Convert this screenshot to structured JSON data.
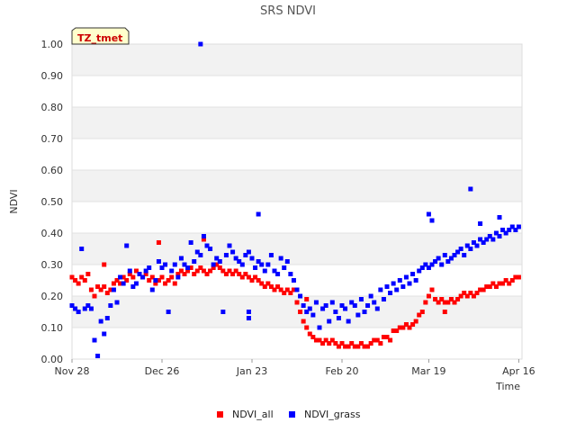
{
  "chart_data": {
    "type": "scatter",
    "title": "SRS NDVI",
    "xlabel": "Time",
    "ylabel": "NDVI",
    "site_badge": "TZ_tmet",
    "ylim": [
      0,
      1
    ],
    "yticks": [
      "0.00",
      "0.10",
      "0.20",
      "0.30",
      "0.40",
      "0.50",
      "0.60",
      "0.70",
      "0.80",
      "0.90",
      "1.00"
    ],
    "x_range_days": [
      0,
      140
    ],
    "x_ticks": [
      {
        "label": "Nov 28",
        "day": 0
      },
      {
        "label": "Dec 26",
        "day": 28
      },
      {
        "label": "Jan 23",
        "day": 56
      },
      {
        "label": "Feb 20",
        "day": 84
      },
      {
        "label": "Mar 19",
        "day": 111
      },
      {
        "label": "Apr 16",
        "day": 139
      }
    ],
    "legend": "bottom-center",
    "series": [
      {
        "name": "NDVI_all",
        "color": "#ff0000",
        "points": [
          [
            0,
            0.26
          ],
          [
            1,
            0.25
          ],
          [
            2,
            0.24
          ],
          [
            3,
            0.26
          ],
          [
            4,
            0.25
          ],
          [
            5,
            0.27
          ],
          [
            6,
            0.22
          ],
          [
            7,
            0.2
          ],
          [
            8,
            0.23
          ],
          [
            9,
            0.22
          ],
          [
            10,
            0.23
          ],
          [
            11,
            0.21
          ],
          [
            12,
            0.22
          ],
          [
            13,
            0.24
          ],
          [
            14,
            0.25
          ],
          [
            15,
            0.24
          ],
          [
            16,
            0.26
          ],
          [
            17,
            0.25
          ],
          [
            18,
            0.27
          ],
          [
            19,
            0.26
          ],
          [
            20,
            0.28
          ],
          [
            21,
            0.27
          ],
          [
            22,
            0.26
          ],
          [
            23,
            0.27
          ],
          [
            24,
            0.25
          ],
          [
            25,
            0.26
          ],
          [
            26,
            0.24
          ],
          [
            27,
            0.25
          ],
          [
            28,
            0.26
          ],
          [
            29,
            0.24
          ],
          [
            30,
            0.25
          ],
          [
            31,
            0.26
          ],
          [
            32,
            0.24
          ],
          [
            33,
            0.27
          ],
          [
            34,
            0.28
          ],
          [
            35,
            0.27
          ],
          [
            36,
            0.28
          ],
          [
            37,
            0.29
          ],
          [
            38,
            0.27
          ],
          [
            39,
            0.28
          ],
          [
            40,
            0.29
          ],
          [
            41,
            0.28
          ],
          [
            42,
            0.27
          ],
          [
            43,
            0.28
          ],
          [
            44,
            0.29
          ],
          [
            45,
            0.3
          ],
          [
            46,
            0.29
          ],
          [
            47,
            0.28
          ],
          [
            48,
            0.27
          ],
          [
            49,
            0.28
          ],
          [
            50,
            0.27
          ],
          [
            51,
            0.28
          ],
          [
            52,
            0.27
          ],
          [
            53,
            0.26
          ],
          [
            54,
            0.27
          ],
          [
            55,
            0.26
          ],
          [
            56,
            0.25
          ],
          [
            57,
            0.26
          ],
          [
            58,
            0.25
          ],
          [
            59,
            0.24
          ],
          [
            60,
            0.23
          ],
          [
            61,
            0.24
          ],
          [
            62,
            0.23
          ],
          [
            63,
            0.22
          ],
          [
            64,
            0.23
          ],
          [
            65,
            0.22
          ],
          [
            66,
            0.21
          ],
          [
            67,
            0.22
          ],
          [
            68,
            0.21
          ],
          [
            69,
            0.22
          ],
          [
            70,
            0.18
          ],
          [
            71,
            0.15
          ],
          [
            72,
            0.12
          ],
          [
            73,
            0.1
          ],
          [
            74,
            0.08
          ],
          [
            75,
            0.07
          ],
          [
            76,
            0.06
          ],
          [
            77,
            0.06
          ],
          [
            78,
            0.05
          ],
          [
            79,
            0.06
          ],
          [
            80,
            0.05
          ],
          [
            81,
            0.06
          ],
          [
            82,
            0.05
          ],
          [
            83,
            0.04
          ],
          [
            84,
            0.05
          ],
          [
            85,
            0.04
          ],
          [
            86,
            0.04
          ],
          [
            87,
            0.05
          ],
          [
            88,
            0.04
          ],
          [
            89,
            0.04
          ],
          [
            90,
            0.05
          ],
          [
            91,
            0.04
          ],
          [
            92,
            0.04
          ],
          [
            93,
            0.05
          ],
          [
            94,
            0.06
          ],
          [
            95,
            0.06
          ],
          [
            96,
            0.05
          ],
          [
            97,
            0.07
          ],
          [
            98,
            0.07
          ],
          [
            99,
            0.06
          ],
          [
            100,
            0.09
          ],
          [
            101,
            0.09
          ],
          [
            102,
            0.1
          ],
          [
            103,
            0.1
          ],
          [
            104,
            0.11
          ],
          [
            105,
            0.1
          ],
          [
            106,
            0.11
          ],
          [
            107,
            0.12
          ],
          [
            108,
            0.14
          ],
          [
            109,
            0.15
          ],
          [
            110,
            0.18
          ],
          [
            111,
            0.2
          ],
          [
            112,
            0.22
          ],
          [
            113,
            0.19
          ],
          [
            114,
            0.18
          ],
          [
            115,
            0.19
          ],
          [
            116,
            0.18
          ],
          [
            117,
            0.18
          ],
          [
            118,
            0.19
          ],
          [
            119,
            0.18
          ],
          [
            120,
            0.19
          ],
          [
            121,
            0.2
          ],
          [
            122,
            0.21
          ],
          [
            123,
            0.2
          ],
          [
            124,
            0.21
          ],
          [
            125,
            0.2
          ],
          [
            126,
            0.21
          ],
          [
            127,
            0.22
          ],
          [
            128,
            0.22
          ],
          [
            129,
            0.23
          ],
          [
            130,
            0.23
          ],
          [
            131,
            0.24
          ],
          [
            132,
            0.23
          ],
          [
            133,
            0.24
          ],
          [
            134,
            0.24
          ],
          [
            135,
            0.25
          ],
          [
            136,
            0.24
          ],
          [
            137,
            0.25
          ],
          [
            138,
            0.26
          ],
          [
            139,
            0.26
          ],
          [
            10,
            0.3
          ],
          [
            27,
            0.37
          ],
          [
            41,
            0.38
          ],
          [
            73,
            0.19
          ],
          [
            116,
            0.15
          ]
        ]
      },
      {
        "name": "NDVI_grass",
        "color": "#0000ff",
        "points": [
          [
            0,
            0.17
          ],
          [
            1,
            0.16
          ],
          [
            2,
            0.15
          ],
          [
            3,
            0.35
          ],
          [
            4,
            0.16
          ],
          [
            5,
            0.17
          ],
          [
            6,
            0.16
          ],
          [
            7,
            0.06
          ],
          [
            8,
            0.01
          ],
          [
            9,
            0.12
          ],
          [
            10,
            0.08
          ],
          [
            11,
            0.13
          ],
          [
            12,
            0.17
          ],
          [
            13,
            0.22
          ],
          [
            14,
            0.18
          ],
          [
            15,
            0.26
          ],
          [
            16,
            0.24
          ],
          [
            17,
            0.36
          ],
          [
            18,
            0.28
          ],
          [
            19,
            0.23
          ],
          [
            20,
            0.24
          ],
          [
            21,
            0.27
          ],
          [
            22,
            0.26
          ],
          [
            23,
            0.28
          ],
          [
            24,
            0.29
          ],
          [
            25,
            0.22
          ],
          [
            26,
            0.25
          ],
          [
            27,
            0.31
          ],
          [
            28,
            0.29
          ],
          [
            29,
            0.3
          ],
          [
            30,
            0.15
          ],
          [
            31,
            0.28
          ],
          [
            32,
            0.3
          ],
          [
            33,
            0.26
          ],
          [
            34,
            0.32
          ],
          [
            35,
            0.3
          ],
          [
            36,
            0.29
          ],
          [
            37,
            0.37
          ],
          [
            38,
            0.31
          ],
          [
            39,
            0.34
          ],
          [
            40,
            0.33
          ],
          [
            41,
            0.39
          ],
          [
            42,
            0.36
          ],
          [
            43,
            0.35
          ],
          [
            44,
            0.3
          ],
          [
            45,
            0.32
          ],
          [
            46,
            0.31
          ],
          [
            47,
            0.15
          ],
          [
            48,
            0.33
          ],
          [
            49,
            0.36
          ],
          [
            50,
            0.34
          ],
          [
            51,
            0.32
          ],
          [
            52,
            0.31
          ],
          [
            53,
            0.3
          ],
          [
            54,
            0.33
          ],
          [
            55,
            0.34
          ],
          [
            56,
            0.32
          ],
          [
            57,
            0.29
          ],
          [
            58,
            0.31
          ],
          [
            59,
            0.3
          ],
          [
            60,
            0.28
          ],
          [
            61,
            0.3
          ],
          [
            62,
            0.33
          ],
          [
            63,
            0.28
          ],
          [
            64,
            0.27
          ],
          [
            65,
            0.32
          ],
          [
            66,
            0.29
          ],
          [
            67,
            0.31
          ],
          [
            68,
            0.27
          ],
          [
            69,
            0.25
          ],
          [
            70,
            0.22
          ],
          [
            71,
            0.2
          ],
          [
            72,
            0.17
          ],
          [
            73,
            0.15
          ],
          [
            74,
            0.16
          ],
          [
            75,
            0.14
          ],
          [
            76,
            0.18
          ],
          [
            77,
            0.1
          ],
          [
            78,
            0.16
          ],
          [
            79,
            0.17
          ],
          [
            80,
            0.12
          ],
          [
            81,
            0.18
          ],
          [
            82,
            0.15
          ],
          [
            83,
            0.13
          ],
          [
            84,
            0.17
          ],
          [
            85,
            0.16
          ],
          [
            86,
            0.12
          ],
          [
            87,
            0.18
          ],
          [
            88,
            0.17
          ],
          [
            89,
            0.14
          ],
          [
            90,
            0.19
          ],
          [
            91,
            0.15
          ],
          [
            92,
            0.17
          ],
          [
            93,
            0.2
          ],
          [
            94,
            0.18
          ],
          [
            95,
            0.16
          ],
          [
            96,
            0.22
          ],
          [
            97,
            0.19
          ],
          [
            98,
            0.23
          ],
          [
            99,
            0.21
          ],
          [
            100,
            0.24
          ],
          [
            101,
            0.22
          ],
          [
            102,
            0.25
          ],
          [
            103,
            0.23
          ],
          [
            104,
            0.26
          ],
          [
            105,
            0.24
          ],
          [
            106,
            0.27
          ],
          [
            107,
            0.25
          ],
          [
            108,
            0.28
          ],
          [
            109,
            0.29
          ],
          [
            110,
            0.3
          ],
          [
            111,
            0.29
          ],
          [
            112,
            0.3
          ],
          [
            113,
            0.31
          ],
          [
            114,
            0.32
          ],
          [
            115,
            0.3
          ],
          [
            116,
            0.33
          ],
          [
            117,
            0.31
          ],
          [
            118,
            0.32
          ],
          [
            119,
            0.33
          ],
          [
            120,
            0.34
          ],
          [
            121,
            0.35
          ],
          [
            122,
            0.33
          ],
          [
            123,
            0.36
          ],
          [
            124,
            0.35
          ],
          [
            125,
            0.37
          ],
          [
            126,
            0.36
          ],
          [
            127,
            0.38
          ],
          [
            128,
            0.37
          ],
          [
            129,
            0.38
          ],
          [
            130,
            0.39
          ],
          [
            131,
            0.38
          ],
          [
            132,
            0.4
          ],
          [
            133,
            0.39
          ],
          [
            134,
            0.41
          ],
          [
            135,
            0.4
          ],
          [
            136,
            0.41
          ],
          [
            137,
            0.42
          ],
          [
            138,
            0.41
          ],
          [
            139,
            0.42
          ],
          [
            40,
            1.0
          ],
          [
            55,
            0.13
          ],
          [
            55,
            0.15
          ],
          [
            58,
            0.46
          ],
          [
            111,
            0.46
          ],
          [
            112,
            0.44
          ],
          [
            124,
            0.54
          ],
          [
            127,
            0.43
          ],
          [
            133,
            0.45
          ]
        ]
      }
    ]
  }
}
